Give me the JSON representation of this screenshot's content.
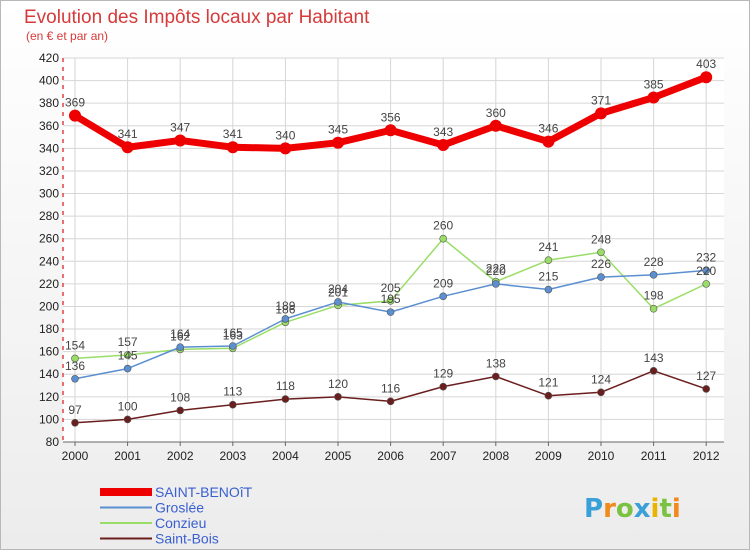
{
  "chart_data": {
    "type": "line",
    "title": "Evolution des Impôts locaux par Habitant",
    "subtitle": "(en € et par an)",
    "x": [
      "2000",
      "2001",
      "2002",
      "2003",
      "2004",
      "2005",
      "2006",
      "2007",
      "2008",
      "2009",
      "2010",
      "2011",
      "2012"
    ],
    "ylim": [
      80,
      420
    ],
    "yticks": [
      80,
      100,
      120,
      140,
      160,
      180,
      200,
      220,
      240,
      260,
      280,
      300,
      320,
      340,
      360,
      380,
      400,
      420
    ],
    "grid": true,
    "legend_position": "bottom-left",
    "series": [
      {
        "name": "SAINT-BENOîT",
        "color": "#ee0000",
        "values": [
          369,
          341,
          347,
          341,
          340,
          345,
          356,
          343,
          360,
          346,
          371,
          385,
          403
        ]
      },
      {
        "name": "Groslée",
        "color": "#5b8fd0",
        "values": [
          136,
          145,
          164,
          165,
          189,
          204,
          195,
          209,
          220,
          215,
          226,
          228,
          232
        ]
      },
      {
        "name": "Conzieu",
        "color": "#99dd66",
        "values": [
          154,
          157,
          162,
          163,
          186,
          201,
          205,
          260,
          222,
          241,
          248,
          198,
          220
        ]
      },
      {
        "name": "Saint-Bois",
        "color": "#6b1e1e",
        "values": [
          97,
          100,
          108,
          113,
          118,
          120,
          116,
          129,
          138,
          121,
          124,
          143,
          127
        ]
      }
    ]
  },
  "watermark": {
    "text": "Proxiti",
    "letter_colors": [
      "#3aa0d8",
      "#f08a1c",
      "#7cc242",
      "#3aa0d8",
      "#e8b400",
      "#7cc242",
      "#f08a1c"
    ]
  }
}
